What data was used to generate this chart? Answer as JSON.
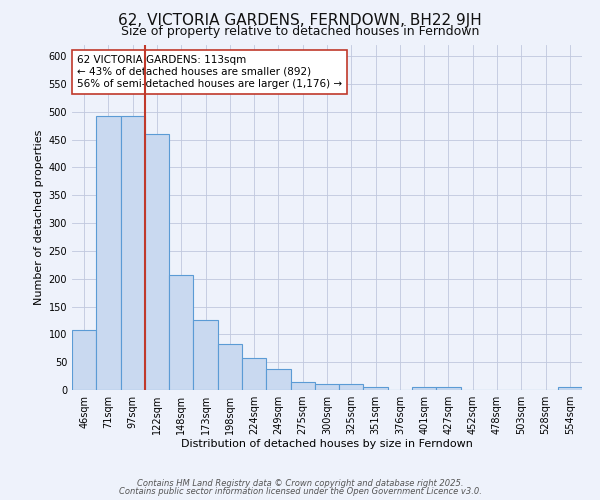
{
  "title": "62, VICTORIA GARDENS, FERNDOWN, BH22 9JH",
  "subtitle": "Size of property relative to detached houses in Ferndown",
  "xlabel": "Distribution of detached houses by size in Ferndown",
  "ylabel": "Number of detached properties",
  "bin_labels": [
    "46sqm",
    "71sqm",
    "97sqm",
    "122sqm",
    "148sqm",
    "173sqm",
    "198sqm",
    "224sqm",
    "249sqm",
    "275sqm",
    "300sqm",
    "325sqm",
    "351sqm",
    "376sqm",
    "401sqm",
    "427sqm",
    "452sqm",
    "478sqm",
    "503sqm",
    "528sqm",
    "554sqm"
  ],
  "bar_values": [
    107,
    493,
    493,
    460,
    207,
    125,
    83,
    58,
    37,
    15,
    10,
    10,
    5,
    0,
    5,
    5,
    0,
    0,
    0,
    0,
    5
  ],
  "bar_color": "#c9d9f0",
  "bar_edge_color": "#5b9bd5",
  "vline_x_index": 2.5,
  "vline_color": "#c0392b",
  "annotation_text": "62 VICTORIA GARDENS: 113sqm\n← 43% of detached houses are smaller (892)\n56% of semi-detached houses are larger (1,176) →",
  "annotation_box_color": "#ffffff",
  "annotation_box_edge_color": "#c0392b",
  "footer_line1": "Contains HM Land Registry data © Crown copyright and database right 2025.",
  "footer_line2": "Contains public sector information licensed under the Open Government Licence v3.0.",
  "ylim": [
    0,
    620
  ],
  "background_color": "#eef2fb",
  "plot_background": "#eef2fb",
  "grid_color": "#c0c8de",
  "title_fontsize": 11,
  "subtitle_fontsize": 9,
  "axis_label_fontsize": 8,
  "tick_fontsize": 7,
  "annotation_fontsize": 7.5,
  "footer_fontsize": 6
}
